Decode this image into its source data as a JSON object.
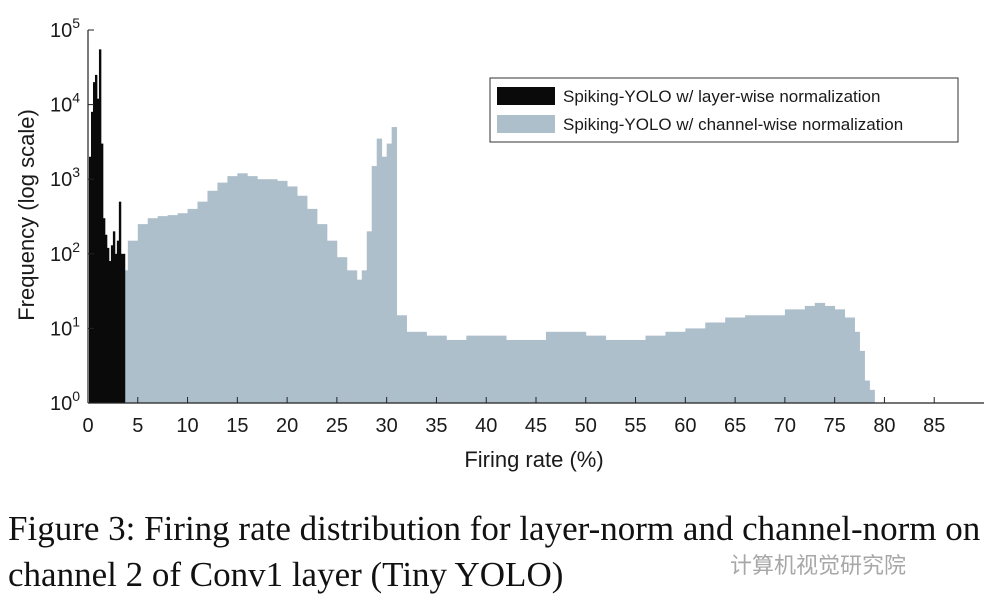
{
  "chart_data": {
    "type": "bar",
    "ylabel": "Frequency (log scale)",
    "xlabel": "Firing rate (%)",
    "yscale": "log",
    "ylim": [
      1,
      100000
    ],
    "xlim": [
      0,
      90
    ],
    "xticks": [
      0,
      5,
      10,
      15,
      20,
      25,
      30,
      35,
      40,
      45,
      50,
      55,
      60,
      65,
      70,
      75,
      80,
      85
    ],
    "yticks": [
      {
        "value": 1,
        "base": "10",
        "exp": "0"
      },
      {
        "value": 10,
        "base": "10",
        "exp": "1"
      },
      {
        "value": 100,
        "base": "10",
        "exp": "2"
      },
      {
        "value": 1000,
        "base": "10",
        "exp": "3"
      },
      {
        "value": 10000,
        "base": "10",
        "exp": "4"
      },
      {
        "value": 100000,
        "base": "10",
        "exp": "5"
      }
    ],
    "legend_position": "top-right",
    "grid": false,
    "series": [
      {
        "name": "Spiking-YOLO w/ layer-wise normalization",
        "color": "#0a0a0a",
        "x": [
          0.1,
          0.3,
          0.5,
          0.7,
          0.9,
          1.1,
          1.3,
          1.5,
          1.7,
          1.9,
          2.1,
          2.3,
          2.5,
          2.7,
          2.9,
          3.1,
          3.3
        ],
        "values": [
          2000,
          8000,
          20000,
          25000,
          12000,
          55000,
          3000,
          300,
          180,
          120,
          80,
          130,
          200,
          100,
          150,
          500,
          100
        ]
      },
      {
        "name": "Spiking-YOLO w/ channel-wise normalization",
        "color": "#aebfcc",
        "x": [
          3.5,
          4,
          5,
          6,
          7,
          8,
          9,
          10,
          11,
          12,
          13,
          14,
          15,
          16,
          17,
          18,
          19,
          20,
          21,
          22,
          23,
          24,
          25,
          26,
          27,
          27.5,
          28,
          28.5,
          29,
          29.5,
          30,
          30.5,
          31,
          32,
          34,
          36,
          38,
          40,
          42,
          44,
          46,
          48,
          50,
          52,
          54,
          56,
          58,
          60,
          62,
          64,
          66,
          68,
          70,
          72,
          73,
          74,
          75,
          76,
          77,
          77.5,
          78,
          78.5,
          79
        ],
        "values": [
          60,
          150,
          250,
          300,
          320,
          330,
          350,
          400,
          500,
          700,
          900,
          1100,
          1200,
          1100,
          1000,
          1000,
          950,
          800,
          600,
          400,
          250,
          150,
          90,
          60,
          45,
          60,
          200,
          1500,
          3500,
          2000,
          3000,
          5000,
          15,
          9,
          8,
          7,
          8,
          8,
          7,
          7,
          9,
          9,
          8,
          7,
          7,
          8,
          9,
          10,
          12,
          14,
          15,
          15,
          18,
          20,
          22,
          20,
          18,
          14,
          9,
          5,
          2,
          1.5,
          1
        ]
      }
    ]
  },
  "caption": "Figure 3: Firing rate distribution for layer-norm and channel-norm on channel 2 of Conv1 layer (Tiny YOLO)",
  "watermark": "计算机视觉研究院"
}
